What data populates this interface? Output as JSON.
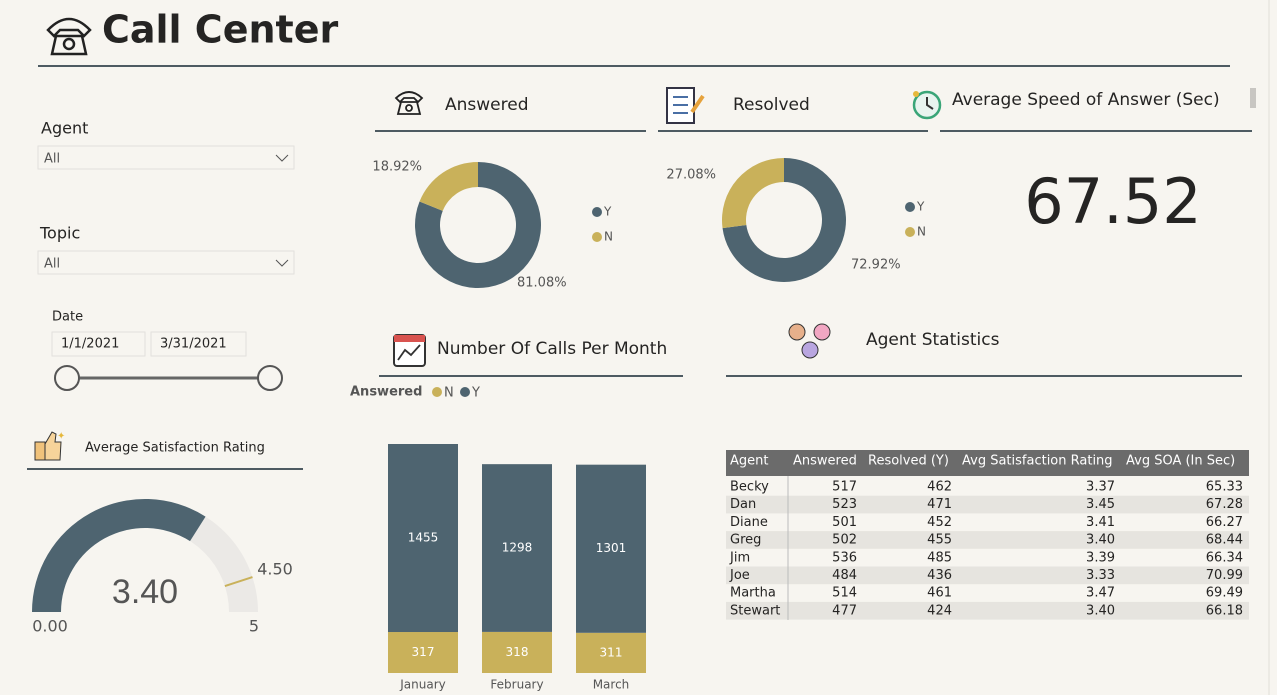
{
  "header": {
    "title": "Call Center"
  },
  "filters": {
    "agent": {
      "label": "Agent",
      "value": "All"
    },
    "topic": {
      "label": "Topic",
      "value": "All"
    },
    "date": {
      "label": "Date",
      "start": "1/1/2021",
      "end": "3/31/2021"
    }
  },
  "kpi": {
    "title": "Average Speed of Answer (Sec)",
    "value": 67.52
  },
  "chart_data": [
    {
      "type": "donut",
      "title": "Answered",
      "categories": [
        "Y",
        "N"
      ],
      "values": [
        81.08,
        18.92
      ],
      "value_labels": [
        "81.08%",
        "18.92%"
      ],
      "colors": [
        "#4e6470",
        "#c9b15a"
      ]
    },
    {
      "type": "donut",
      "title": "Resolved",
      "categories": [
        "Y",
        "N"
      ],
      "values": [
        72.92,
        27.08
      ],
      "value_labels": [
        "72.92%",
        "27.08%"
      ],
      "colors": [
        "#4e6470",
        "#c9b15a"
      ]
    },
    {
      "type": "bar",
      "title": "Number Of Calls Per Month",
      "legend_title": "Answered",
      "stacked": true,
      "categories": [
        "January",
        "February",
        "March"
      ],
      "series": [
        {
          "name": "N",
          "color": "#c9b15a",
          "values": [
            317,
            318,
            311
          ]
        },
        {
          "name": "Y",
          "color": "#4e6470",
          "values": [
            1455,
            1298,
            1301
          ]
        }
      ]
    },
    {
      "type": "gauge",
      "title": "Average Satisfaction Rating",
      "values": [
        3.4
      ],
      "value_labels": [
        "3.40"
      ],
      "min": {
        "value": 0,
        "label": "0.00"
      },
      "max": 5,
      "target": {
        "value": 4.5,
        "label": "4.50"
      },
      "color": "#4e6470",
      "track_color": "#ebe9e6",
      "target_color": "#c9b15a"
    }
  ],
  "table": {
    "title": "Agent Statistics",
    "columns": [
      "Agent",
      "Answered",
      "Resolved (Y)",
      "Avg Satisfaction Rating",
      "Avg SOA (In Sec)"
    ],
    "rows": [
      [
        "Becky",
        "517",
        "462",
        "3.37",
        "65.33"
      ],
      [
        "Dan",
        "523",
        "471",
        "3.45",
        "67.28"
      ],
      [
        "Diane",
        "501",
        "452",
        "3.41",
        "66.27"
      ],
      [
        "Greg",
        "502",
        "455",
        "3.40",
        "68.44"
      ],
      [
        "Jim",
        "536",
        "485",
        "3.39",
        "66.34"
      ],
      [
        "Joe",
        "484",
        "436",
        "3.33",
        "70.99"
      ],
      [
        "Martha",
        "514",
        "461",
        "3.47",
        "69.49"
      ],
      [
        "Stewart",
        "477",
        "424",
        "3.40",
        "66.18"
      ]
    ]
  }
}
